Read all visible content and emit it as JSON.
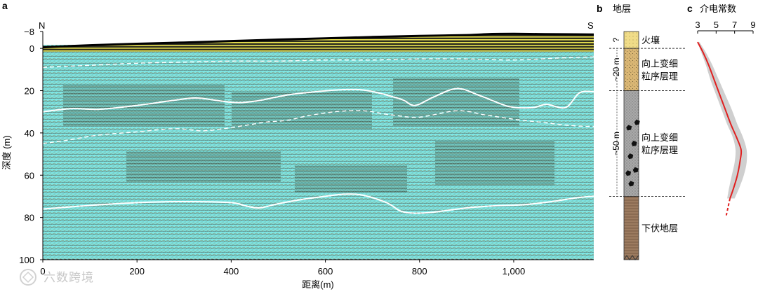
{
  "chart_data": [
    {
      "panel": "a",
      "type": "line",
      "compass_left": "N",
      "compass_right": "S",
      "xlabel": "距离(m)",
      "ylabel": "深度 (m)",
      "xlim": [
        0,
        1170
      ],
      "ylim": [
        -8,
        100
      ],
      "x_ticks": [
        0,
        200,
        400,
        600,
        800,
        1000
      ],
      "x_tick_labels": [
        "0",
        "200",
        "400",
        "600",
        "800",
        "1,000"
      ],
      "y_ticks": [
        -8,
        0,
        20,
        40,
        60,
        80,
        100
      ],
      "y_tick_labels": [
        "−8",
        "0",
        "20",
        "40",
        "60",
        "80",
        "100"
      ],
      "series": [
        {
          "style": "surface",
          "x": [
            0,
            100,
            200,
            300,
            400,
            500,
            600,
            700,
            800,
            900,
            950,
            1000,
            1050,
            1100,
            1170
          ],
          "y": [
            -0.5,
            -1.5,
            -2.2,
            -2.8,
            -3.5,
            -4.2,
            -4.8,
            -5.4,
            -5.9,
            -6.3,
            -6.8,
            -6.9,
            -6.8,
            -6.7,
            -6.6
          ]
        },
        {
          "style": "dashed",
          "x": [
            0,
            100,
            200,
            300,
            400,
            500,
            600,
            700,
            800,
            900,
            1000,
            1100,
            1170
          ],
          "y": [
            9,
            8,
            7,
            6.5,
            6,
            6,
            5.5,
            5.5,
            5,
            5,
            5.5,
            4.5,
            4
          ]
        },
        {
          "style": "solid",
          "x": [
            0,
            60,
            120,
            200,
            280,
            330,
            400,
            450,
            520,
            580,
            640,
            690,
            760,
            790,
            830,
            880,
            930,
            990,
            1040,
            1070,
            1110,
            1140,
            1170
          ],
          "y": [
            30,
            28.5,
            28.8,
            27,
            24.5,
            23.5,
            25.5,
            25,
            22,
            20.5,
            19.5,
            20,
            24,
            27,
            23,
            19,
            22.5,
            27.5,
            28,
            26.5,
            28,
            21,
            20.5
          ]
        },
        {
          "style": "dashed",
          "x": [
            0,
            50,
            120,
            200,
            280,
            340,
            400,
            470,
            520,
            560,
            620,
            680,
            740,
            800,
            880,
            940,
            1000,
            1060,
            1120,
            1170
          ],
          "y": [
            45,
            43.5,
            41,
            39.5,
            38,
            39,
            37.5,
            35,
            34,
            32,
            30,
            29.5,
            31.5,
            32.5,
            29.5,
            31.5,
            33.5,
            35,
            36.5,
            37
          ]
        },
        {
          "style": "solid",
          "x": [
            0,
            60,
            120,
            200,
            300,
            400,
            430,
            460,
            500,
            550,
            600,
            640,
            680,
            730,
            760,
            790,
            830,
            900,
            960,
            1020,
            1080,
            1140,
            1170
          ],
          "y": [
            76,
            75,
            74,
            73,
            72.5,
            73,
            74.5,
            75.5,
            73.5,
            71.5,
            70,
            69,
            69.5,
            73,
            77,
            78,
            77.5,
            75.5,
            74.5,
            74,
            72.5,
            70.5,
            70
          ]
        }
      ]
    },
    {
      "panel": "b",
      "type": "table",
      "title": "地层",
      "units": [
        {
          "label": "火壤",
          "top_m": -8,
          "bottom_m": 0,
          "fill": "#f0dc88"
        },
        {
          "label": "向上变细粒序层理",
          "top_m": 0,
          "bottom_m": 20,
          "fill": "#d9b674"
        },
        {
          "label": "向上变细粒序层理",
          "top_m": 20,
          "bottom_m": 70,
          "fill": "#a8a8a8"
        },
        {
          "label": "下伏地层",
          "top_m": 70,
          "bottom_m": 100,
          "fill": "#9c7b60"
        }
      ],
      "thickness_labels": [
        {
          "text": "?",
          "top_m": -8,
          "bottom_m": 0
        },
        {
          "text": "~20 m",
          "top_m": 0,
          "bottom_m": 20
        },
        {
          "text": "~50 m",
          "top_m": 20,
          "bottom_m": 70
        }
      ]
    },
    {
      "panel": "c",
      "type": "line",
      "title": "介电常数",
      "xlim": [
        3,
        9
      ],
      "ylim": [
        -8,
        100
      ],
      "x_ticks": [
        3,
        5,
        7,
        9
      ],
      "x_tick_labels": [
        "3",
        "5",
        "7",
        "9"
      ],
      "series": [
        {
          "style": "red-line",
          "x": [
            3.0,
            3.6,
            4.2,
            4.8,
            5.4,
            6.0,
            6.6,
            7.2,
            7.7,
            7.6,
            7.3,
            6.9,
            6.5
          ],
          "y": [
            -3,
            2,
            8,
            15,
            22,
            29,
            36,
            42,
            48,
            53,
            60,
            66,
            71
          ]
        },
        {
          "style": "red-dashed",
          "x": [
            6.5,
            6.3,
            6.1
          ],
          "y": [
            71,
            75,
            79
          ]
        },
        {
          "style": "uncertainty-band",
          "x_low": [
            3.0,
            3.4,
            3.9,
            4.4,
            5.0,
            5.6,
            6.2,
            6.8,
            7.1,
            7.0,
            6.7,
            6.4,
            6.2
          ],
          "x_high": [
            3.2,
            3.9,
            4.6,
            5.3,
            6.0,
            6.7,
            7.3,
            7.9,
            8.3,
            8.3,
            8.0,
            7.5,
            7.0
          ],
          "y": [
            -3,
            2,
            8,
            15,
            22,
            29,
            36,
            42,
            48,
            54,
            60,
            66,
            71
          ]
        }
      ]
    }
  ],
  "watermark": "六数跨境"
}
